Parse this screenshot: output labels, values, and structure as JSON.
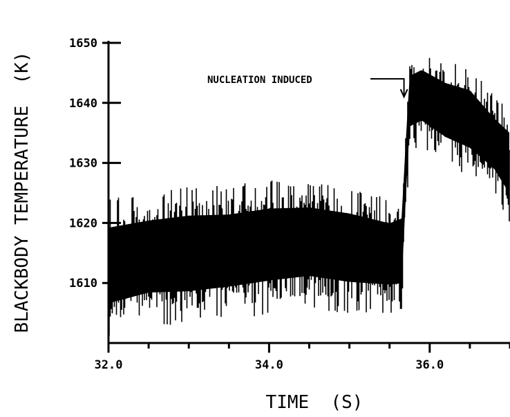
{
  "chart_data": {
    "type": "line",
    "title": "",
    "xlabel": "TIME  (S)",
    "ylabel": "BLACKBODY TEMPERATURE  (K)",
    "xlim": [
      32.0,
      37.0
    ],
    "ylim": [
      1600,
      1650
    ],
    "xticks": [
      32.0,
      34.0,
      36.0
    ],
    "xtick_labels": [
      "32.0",
      "34.0",
      "36.0"
    ],
    "yticks": [
      1610,
      1620,
      1630,
      1640,
      1650
    ],
    "ytick_labels": [
      "1610",
      "1620",
      "1630",
      "1640",
      "1650"
    ],
    "grid": false,
    "annotation": {
      "text": "NUCLEATION INDUCED",
      "x": 35.68,
      "y": 1641
    },
    "series": [
      {
        "color": "#000000",
        "style": "dense noisy trace (band)",
        "x": [
          32.0,
          32.5,
          33.0,
          33.5,
          34.0,
          34.5,
          35.0,
          35.5,
          35.65,
          35.7,
          35.75,
          35.9,
          36.2,
          36.5,
          36.8,
          37.0
        ],
        "y_min": [
          1602,
          1604,
          1604,
          1605,
          1606,
          1607,
          1606,
          1606,
          1606,
          1620,
          1633,
          1634,
          1631,
          1629,
          1626,
          1621
        ],
        "y_max": [
          1623,
          1624,
          1625,
          1625,
          1626,
          1626,
          1625,
          1623,
          1624,
          1636,
          1647,
          1648,
          1646,
          1645,
          1640,
          1638
        ]
      }
    ]
  }
}
